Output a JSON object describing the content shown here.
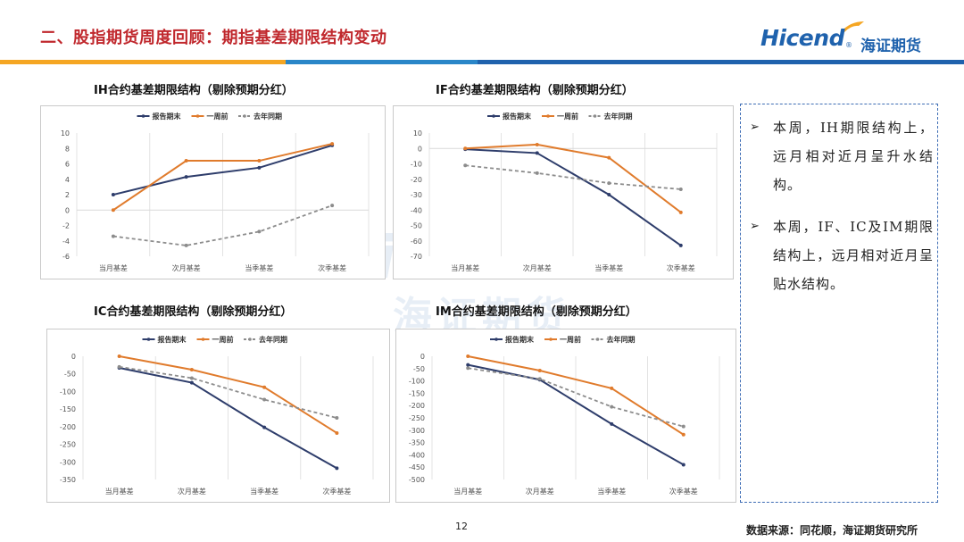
{
  "page_title": "二、股指期货周度回顾：期指基差期限结构变动",
  "logo": {
    "en": "Hicend",
    "reg": "®",
    "cn": "海证期货"
  },
  "watermark": {
    "en": "Hicend",
    "cn": "海证期货"
  },
  "colors": {
    "report_end": "#2e3d6b",
    "week_ago": "#e07b2c",
    "last_year": "#8c8c8c",
    "title_red": "#c0282d",
    "brand_blue": "#1f62ad"
  },
  "legend": [
    "报告期末",
    "一周前",
    "去年同期"
  ],
  "chart_data": [
    {
      "type": "line",
      "title": "IH合约基差期限结构（剔除预期分红）",
      "categories": [
        "当月基差",
        "次月基差",
        "当季基差",
        "次季基差"
      ],
      "ylim": [
        -6,
        10
      ],
      "yticks": [
        10,
        8,
        6,
        4,
        2,
        0,
        -2,
        -4,
        -6
      ],
      "series": [
        {
          "name": "报告期末",
          "values": [
            2.0,
            4.3,
            5.5,
            8.4
          ]
        },
        {
          "name": "一周前",
          "values": [
            0.0,
            6.4,
            6.4,
            8.6
          ]
        },
        {
          "name": "去年同期",
          "values": [
            -3.4,
            -4.6,
            -2.8,
            0.6
          ]
        }
      ]
    },
    {
      "type": "line",
      "title": "IF合约基差期限结构（剔除预期分红）",
      "categories": [
        "当月基差",
        "次月基差",
        "当季基差",
        "次季基差"
      ],
      "ylim": [
        -70,
        10
      ],
      "yticks": [
        10,
        0,
        -10,
        -20,
        -30,
        -40,
        -50,
        -60,
        -70
      ],
      "series": [
        {
          "name": "报告期末",
          "values": [
            -0.5,
            -3.0,
            -30.0,
            -63.0
          ]
        },
        {
          "name": "一周前",
          "values": [
            0.0,
            2.5,
            -6.0,
            -41.5
          ]
        },
        {
          "name": "去年同期",
          "values": [
            -11.0,
            -16.0,
            -22.5,
            -26.5
          ]
        }
      ]
    },
    {
      "type": "line",
      "title": "IC合约基差期限结构（剔除预期分红）",
      "categories": [
        "当月基差",
        "次月基差",
        "当季基差",
        "次季基差"
      ],
      "ylim": [
        -350,
        0
      ],
      "yticks": [
        0,
        -50,
        -100,
        -150,
        -200,
        -250,
        -300,
        -350
      ],
      "series": [
        {
          "name": "报告期末",
          "values": [
            -33,
            -75,
            -202,
            -318
          ]
        },
        {
          "name": "一周前",
          "values": [
            0,
            -38,
            -88,
            -218
          ]
        },
        {
          "name": "去年同期",
          "values": [
            -30,
            -62,
            -123,
            -175
          ]
        }
      ]
    },
    {
      "type": "line",
      "title": "IM合约基差期限结构（剔除预期分红）",
      "categories": [
        "当月基差",
        "次月基差",
        "当季基差",
        "次季基差"
      ],
      "ylim": [
        -500,
        0
      ],
      "yticks": [
        0,
        -50,
        -100,
        -150,
        -200,
        -250,
        -300,
        -350,
        -400,
        -450,
        -500
      ],
      "series": [
        {
          "name": "报告期末",
          "values": [
            -35,
            -95,
            -275,
            -440
          ]
        },
        {
          "name": "一周前",
          "values": [
            0,
            -58,
            -130,
            -318
          ]
        },
        {
          "name": "去年同期",
          "values": [
            -48,
            -92,
            -205,
            -285
          ]
        }
      ]
    }
  ],
  "bullets": [
    "本周，IH期限结构上，远月相对近月呈升水结构。",
    "本周，IF、IC及IM期限结构上，远月相对近月呈贴水结构。"
  ],
  "bullet_marker": "➢",
  "page_number": "12",
  "source": "数据来源：同花顺，海证期货研究所"
}
